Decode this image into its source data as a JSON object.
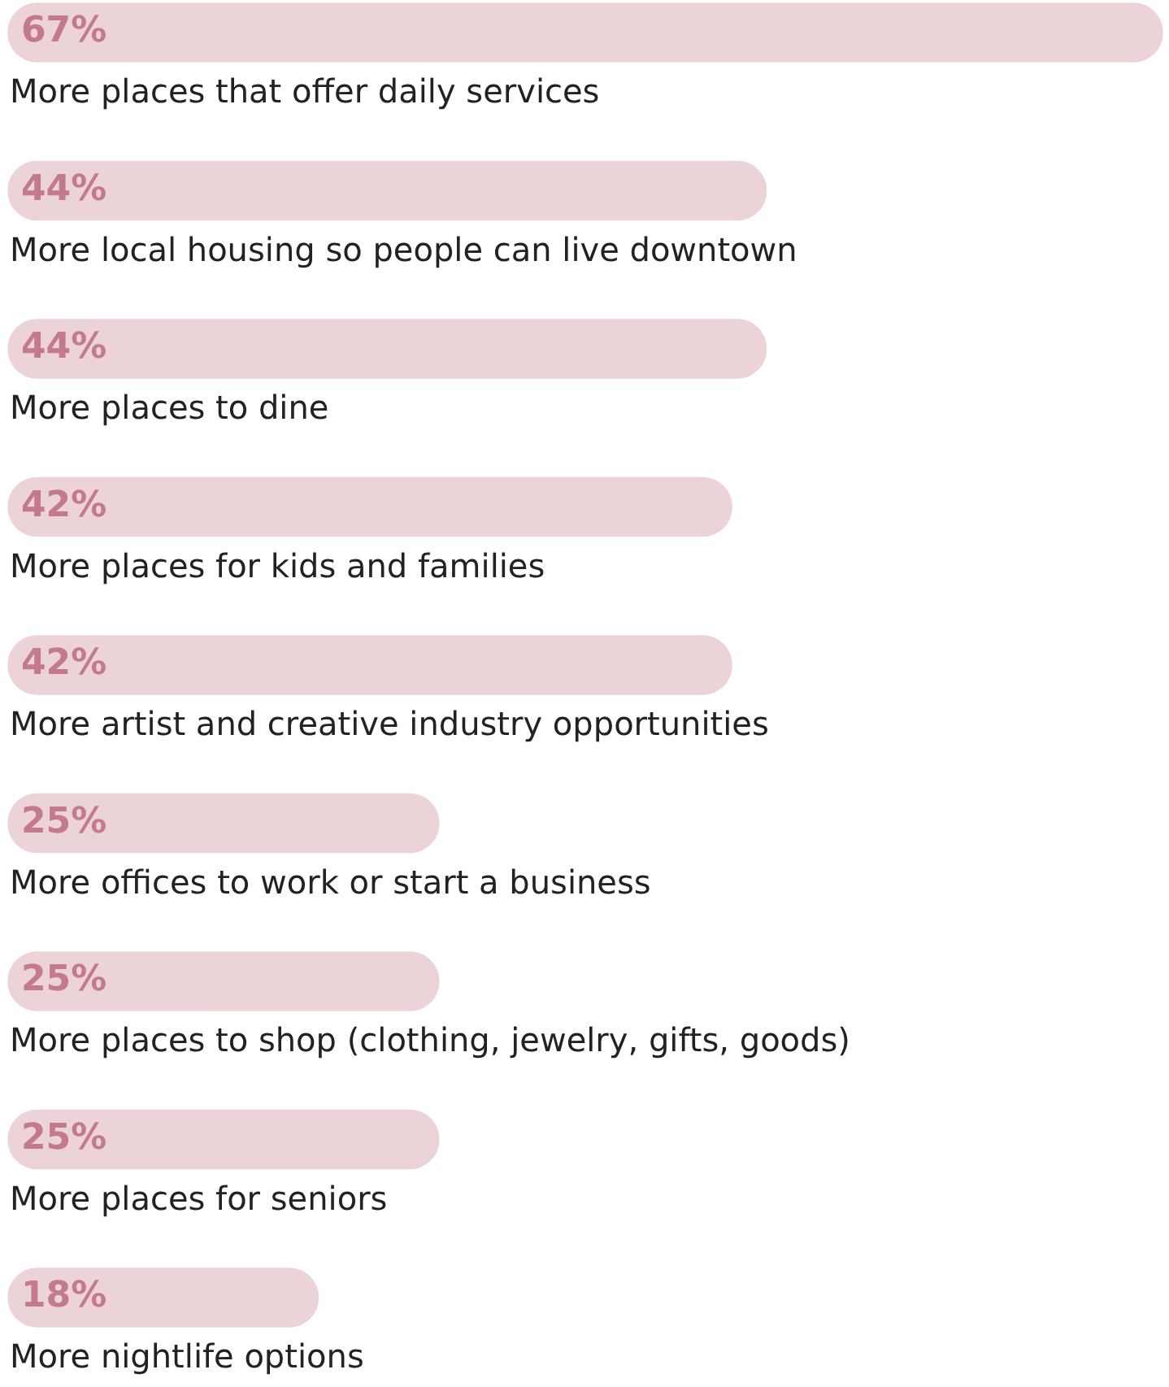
{
  "chart_data": {
    "type": "bar",
    "orientation": "horizontal",
    "categories": [
      "More places that offer daily services",
      "More local housing so people can live downtown",
      "More places to dine",
      "More places for kids and families",
      "More artist and creative industry opportunities",
      "More offices to work or start a business",
      "More places to shop (clothing, jewelry, gifts, goods)",
      "More places for seniors",
      "More nightlife options"
    ],
    "values": [
      67,
      44,
      44,
      42,
      42,
      25,
      25,
      25,
      18
    ],
    "color": "#ecd3d8",
    "data_labels": true,
    "value_labels": [
      "67%",
      "44%",
      "44%",
      "42%",
      "42%",
      "25%",
      "25%",
      "25%",
      "18%"
    ],
    "legend": false
  }
}
